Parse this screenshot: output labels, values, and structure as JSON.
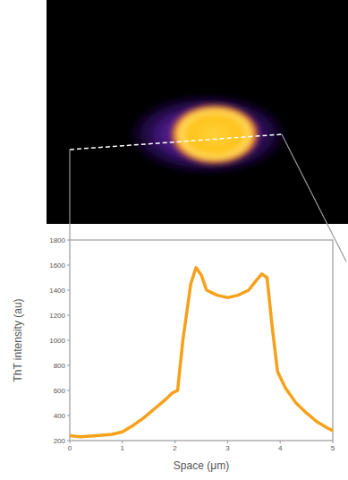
{
  "chart_data": {
    "type": "line",
    "xlabel": "Space (μm)",
    "ylabel": "ThT intensity (au)",
    "x": [
      0,
      0.2,
      0.5,
      0.8,
      1.0,
      1.2,
      1.4,
      1.6,
      1.8,
      1.95,
      2.05,
      2.15,
      2.3,
      2.4,
      2.5,
      2.6,
      2.7,
      2.8,
      3.0,
      3.2,
      3.4,
      3.55,
      3.65,
      3.75,
      3.85,
      3.95,
      4.1,
      4.3,
      4.5,
      4.7,
      4.9,
      5.0
    ],
    "series": [
      {
        "name": "ThT intensity",
        "color": "#f7a11a",
        "values": [
          240,
          230,
          240,
          250,
          270,
          320,
          380,
          450,
          520,
          580,
          600,
          1000,
          1450,
          1580,
          1520,
          1400,
          1380,
          1360,
          1340,
          1360,
          1400,
          1480,
          1530,
          1500,
          1100,
          750,
          620,
          500,
          420,
          350,
          300,
          280
        ]
      }
    ],
    "xlim": [
      0,
      5
    ],
    "ylim": [
      200,
      1800
    ],
    "xticks": [
      0,
      1,
      2,
      3,
      4,
      5
    ],
    "yticks": [
      200,
      400,
      600,
      800,
      1000,
      1200,
      1400,
      1600,
      1800
    ],
    "grid": false
  }
}
